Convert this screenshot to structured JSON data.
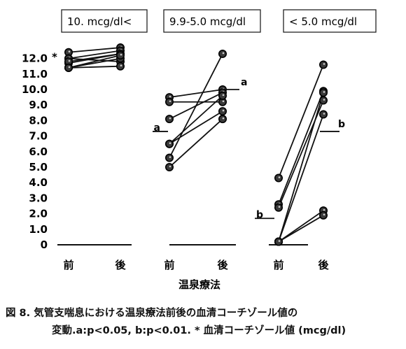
{
  "chart_data": {
    "type": "scatter",
    "y_axis": {
      "ticks": [
        "0",
        "1.0",
        "2.0",
        "3.0",
        "4.0",
        "5.0",
        "6.0",
        "7.0",
        "8.0",
        "9.0",
        "10.0",
        "11.0",
        "12.0"
      ],
      "tick_values": [
        0,
        1,
        2,
        3,
        4,
        5,
        6,
        7,
        8,
        9,
        10,
        11,
        12
      ],
      "ylim": [
        0,
        12.8
      ],
      "top_marker": "*"
    },
    "xlabel": "温泉療法",
    "panels": [
      {
        "group_label": "10. mcg/dl<",
        "before_label": "前",
        "after_label": "後",
        "pairs": [
          {
            "before": 11.7,
            "after": 12.3
          },
          {
            "before": 12.4,
            "after": 12.7
          },
          {
            "before": 12.0,
            "after": 12.5
          },
          {
            "before": 12.0,
            "after": 11.8
          },
          {
            "before": 11.4,
            "after": 12.0
          },
          {
            "before": 11.8,
            "after": 12.3
          },
          {
            "before": 11.4,
            "after": 11.5
          },
          {
            "before": 11.4,
            "after": 12.2
          }
        ],
        "mean_line": null
      },
      {
        "group_label": "9.9-5.0 mcg/dl",
        "before_label": "前",
        "after_label": "後",
        "pairs": [
          {
            "before": 9.5,
            "after": 10.0
          },
          {
            "before": 9.2,
            "after": 9.2
          },
          {
            "before": 8.1,
            "after": 9.8
          },
          {
            "before": 6.5,
            "after": 9.6
          },
          {
            "before": 6.5,
            "after": 8.6
          },
          {
            "before": 5.6,
            "after": 12.3
          },
          {
            "before": 5.0,
            "after": 8.1
          }
        ],
        "mean_line": {
          "label": "a",
          "before": 7.3,
          "after": 10.0
        }
      },
      {
        "group_label": "< 5.0 mcg/dl",
        "before_label": "前",
        "after_label": "後",
        "pairs": [
          {
            "before": 4.3,
            "after": 11.6
          },
          {
            "before": 2.6,
            "after": 9.9
          },
          {
            "before": 2.4,
            "after": 9.3
          },
          {
            "before": 0.2,
            "after": 8.4
          },
          {
            "before": 0.2,
            "after": 9.8
          },
          {
            "before": 0.2,
            "after": 2.2
          },
          {
            "before": 0.2,
            "after": 1.9
          }
        ],
        "mean_line": {
          "label": "b",
          "before": 1.7,
          "after": 7.3
        }
      }
    ]
  },
  "caption": {
    "line1": "図 8. 気管支喘息における温泉療法前後の血清コーチゾール値の",
    "line2": "変動.a:p<0.05, b:p<0.01. * 血清コーチゾール値 (mcg/dl)"
  }
}
